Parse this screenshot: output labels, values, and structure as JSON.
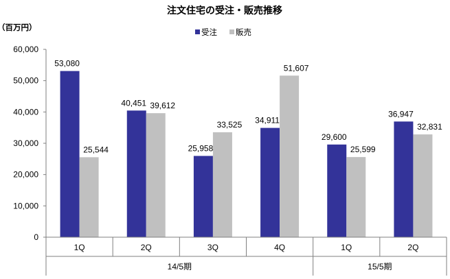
{
  "chart_data": {
    "type": "bar",
    "title": "注文住宅の受注・販売推移",
    "unit_label": "（百万円）",
    "ylim": [
      0,
      60000
    ],
    "yticks": [
      0,
      10000,
      20000,
      30000,
      40000,
      50000,
      60000
    ],
    "ytick_labels": [
      "0",
      "10,000",
      "20,000",
      "30,000",
      "40,000",
      "50,000",
      "60,000"
    ],
    "categories": [
      "1Q",
      "2Q",
      "3Q",
      "4Q",
      "1Q",
      "2Q"
    ],
    "groups": [
      {
        "label": "14/5期",
        "count": 4
      },
      {
        "label": "15/5期",
        "count": 2
      }
    ],
    "series": [
      {
        "name": "受注",
        "color": "#333399",
        "values": [
          53080,
          40451,
          25958,
          34911,
          29600,
          36947
        ],
        "labels": [
          "53,080",
          "40,451",
          "25,958",
          "34,911",
          "29,600",
          "36,947"
        ]
      },
      {
        "name": "販売",
        "color": "#c0c0c0",
        "values": [
          25544,
          39612,
          33525,
          51607,
          25599,
          32831
        ],
        "labels": [
          "25,544",
          "39,612",
          "33,525",
          "51,607",
          "25,599",
          "32,831"
        ]
      }
    ],
    "legend_position": "top-center",
    "grid": false
  }
}
